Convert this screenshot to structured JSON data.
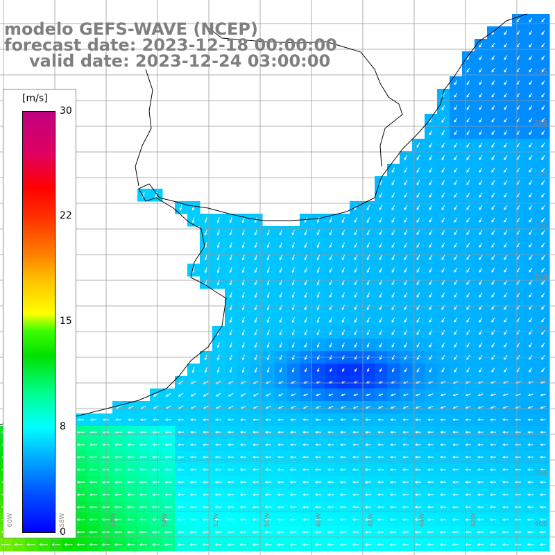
{
  "titles": {
    "model": "modelo GEFS-WAVE (NCEP)",
    "forecast": "forecast date: 2023-12-18 00:00:00",
    "valid": "valid date: 2023-12-24 03:00:00"
  },
  "colorbar": {
    "unit": "[m/s]",
    "ticks": [
      {
        "value": 30,
        "label": "30"
      },
      {
        "value": 22,
        "label": "22"
      },
      {
        "value": 15,
        "label": "15"
      },
      {
        "value": 8,
        "label": "8"
      },
      {
        "value": 0,
        "label": "0"
      }
    ],
    "range": [
      0,
      30
    ]
  },
  "longitude_labels": [
    "60W",
    "58W",
    "56W",
    "54W",
    "52W",
    "50W",
    "48W",
    "46W",
    "44W",
    "42W"
  ],
  "latitude_labels": [
    "24S",
    "26S",
    "28S",
    "30S",
    "32S",
    "34S",
    "36S",
    "38S",
    "40S"
  ],
  "colors": {
    "land": "#ffffff",
    "coast": "#000000",
    "grid": "#999999",
    "title": "#7f7f7f",
    "arrow": "#ffffff"
  }
}
